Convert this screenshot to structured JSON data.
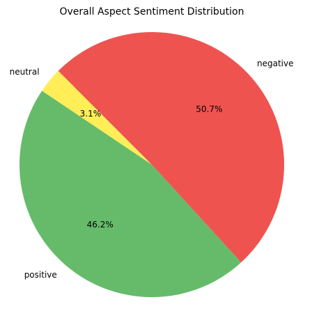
{
  "chart_data": {
    "type": "pie",
    "title": "Overall Aspect Sentiment Distribution",
    "start_angle_deg": 135,
    "direction": "counterclockwise",
    "slices": [
      {
        "label": "neutral",
        "value": 3.1,
        "pct_label": "3.1%",
        "color": "#ffee58"
      },
      {
        "label": "positive",
        "value": 46.2,
        "pct_label": "46.2%",
        "color": "#66bb6a"
      },
      {
        "label": "negative",
        "value": 50.7,
        "pct_label": "50.7%",
        "color": "#ef5350"
      }
    ]
  }
}
